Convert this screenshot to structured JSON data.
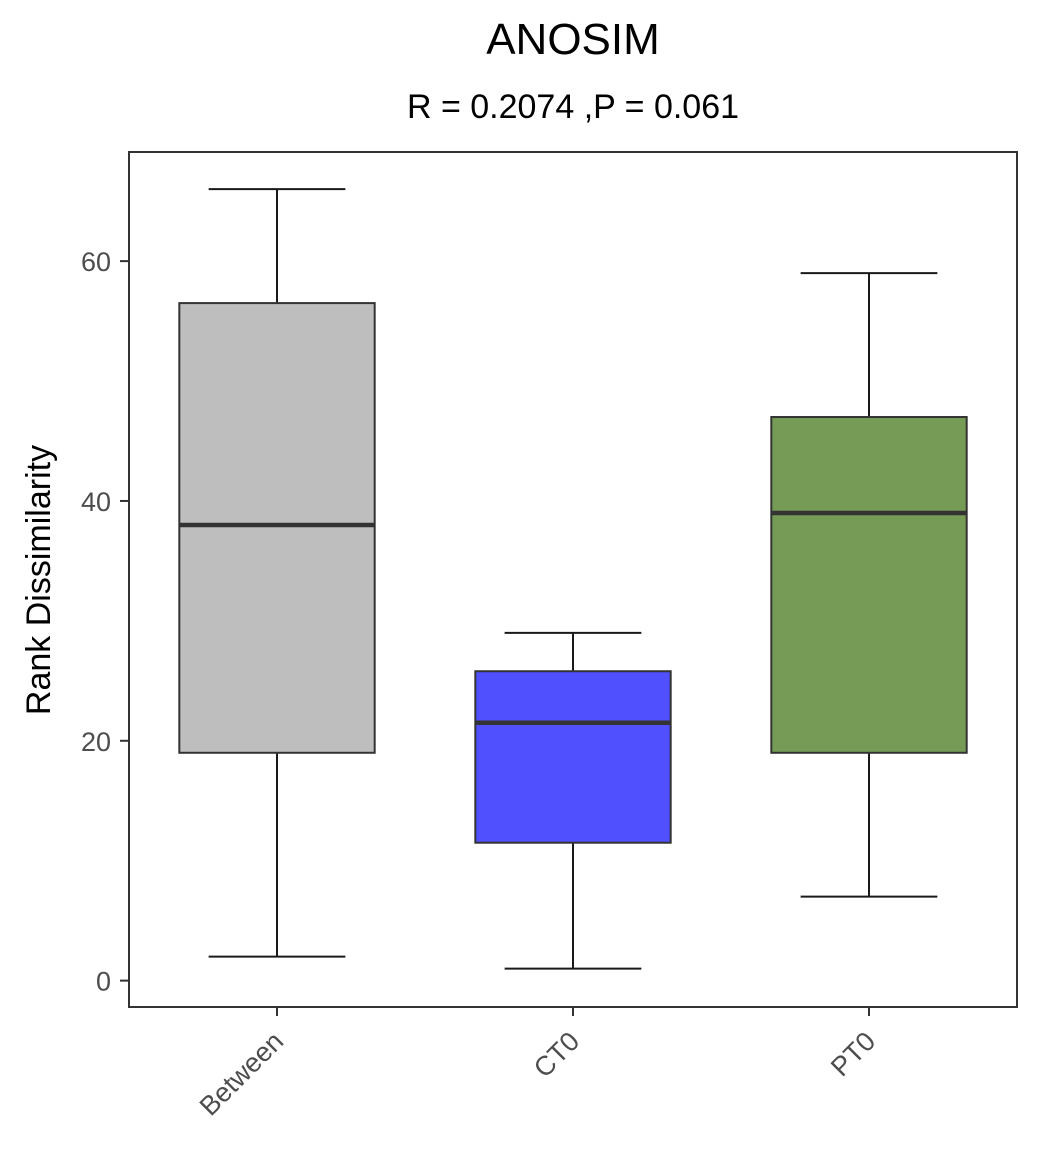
{
  "chart_data": {
    "type": "box",
    "title": "ANOSIM",
    "subtitle": "R = 0.2074 ,P = 0.061",
    "xlabel": "",
    "ylabel": "Rank Dissimilarity",
    "ylim": [
      -2.2,
      69.1
    ],
    "yticks": [
      0,
      20,
      40,
      60
    ],
    "ytick_labels": [
      "0",
      "20",
      "40",
      "60"
    ],
    "grid": false,
    "categories": [
      "Between",
      "CT0",
      "PT0"
    ],
    "boxes": [
      {
        "name": "Between",
        "min": 2,
        "q1": 19,
        "median": 38,
        "q3": 56.5,
        "max": 66,
        "color": "#bebebe"
      },
      {
        "name": "CT0",
        "min": 1,
        "q1": 11.5,
        "median": 21.5,
        "q3": 25.8,
        "max": 29,
        "color": "#5050ff"
      },
      {
        "name": "PT0",
        "min": 7,
        "q1": 19,
        "median": 39,
        "q3": 47,
        "max": 59,
        "color": "#769b57"
      }
    ]
  }
}
